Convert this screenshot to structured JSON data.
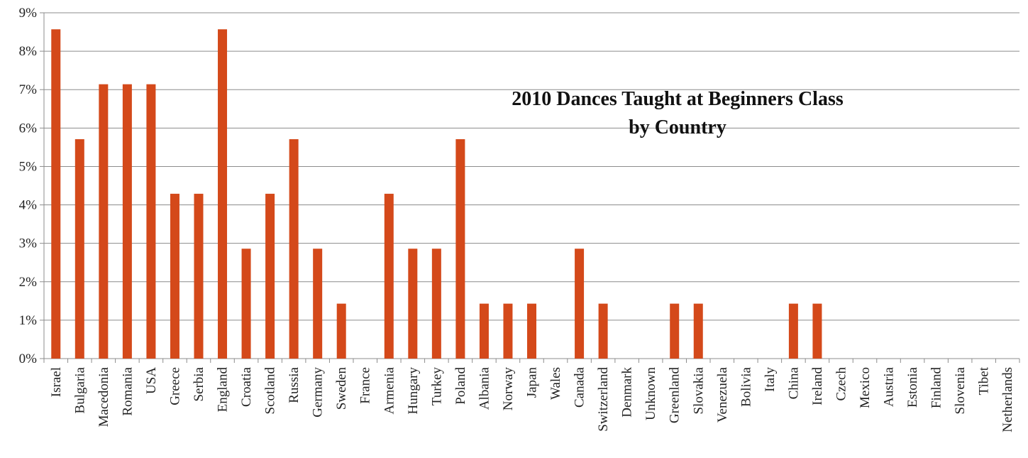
{
  "chart_data": {
    "type": "bar",
    "title_lines": [
      "2010 Dances Taught at Beginners Class",
      "by Country"
    ],
    "xlabel": "",
    "ylabel": "",
    "ylim": [
      0,
      9
    ],
    "y_ticks": [
      "0%",
      "1%",
      "2%",
      "3%",
      "4%",
      "5%",
      "6%",
      "7%",
      "8%",
      "9%"
    ],
    "grid": true,
    "bar_color": "#D4491A",
    "categories": [
      "Israel",
      "Bulgaria",
      "Macedonia",
      "Romania",
      "USA",
      "Greece",
      "Serbia",
      "England",
      "Croatia",
      "Scotland",
      "Russia",
      "Germany",
      "Sweden",
      "France",
      "Armenia",
      "Hungary",
      "Turkey",
      "Poland",
      "Albania",
      "Norway",
      "Japan",
      "Wales",
      "Canada",
      "Switzerland",
      "Denmark",
      "Unknown",
      "Greenland",
      "Slovakia",
      "Venezuela",
      "Bolivia",
      "Italy",
      "China",
      "Ireland",
      "Czech",
      "Mexico",
      "Austria",
      "Estonia",
      "Finland",
      "Slovenia",
      "Tibet",
      "Netherlands"
    ],
    "values": [
      8.57,
      5.71,
      7.14,
      7.14,
      7.14,
      4.29,
      4.29,
      8.57,
      2.86,
      4.29,
      5.71,
      2.86,
      1.43,
      0,
      4.29,
      2.86,
      2.86,
      5.71,
      1.43,
      1.43,
      1.43,
      0,
      2.86,
      1.43,
      0,
      0,
      1.43,
      1.43,
      0,
      0,
      0,
      1.43,
      1.43,
      0,
      0,
      0,
      0,
      0,
      0,
      0,
      0
    ]
  }
}
